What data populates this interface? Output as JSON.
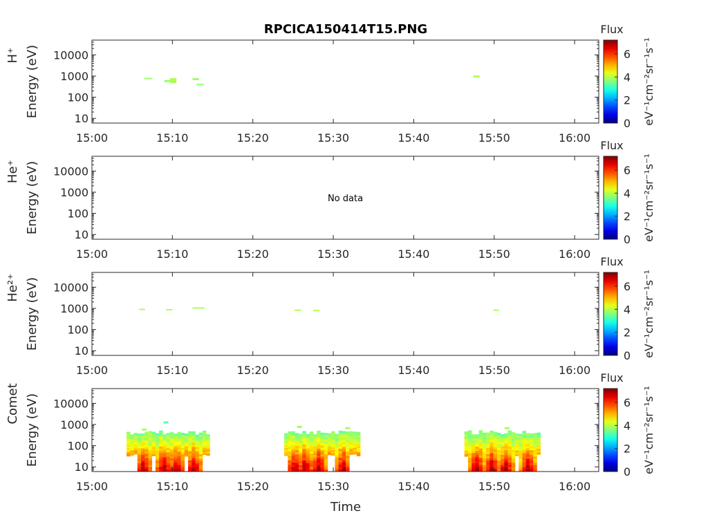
{
  "chart_data": {
    "type": "heatmap",
    "title": "RPCICA150414T15.PNG",
    "xlabel": "Time",
    "x_range": [
      "15:00",
      "16:03"
    ],
    "x_ticks": [
      "15:00",
      "15:10",
      "15:20",
      "15:30",
      "15:40",
      "15:50",
      "16:00"
    ],
    "y_scale": "log",
    "y_range_eV": [
      6,
      50000
    ],
    "y_ticks": [
      "10",
      "100",
      "1000",
      "10000"
    ],
    "colorbar": {
      "label_top": "Flux",
      "unit": "eV⁻¹cm⁻²sr⁻¹s⁻¹",
      "range": [
        0,
        7.2
      ],
      "ticks": [
        "0",
        "2",
        "4",
        "6"
      ],
      "colormap": "jet"
    },
    "panels": [
      {
        "species": "H⁺",
        "ylabel": "Energy (eV)",
        "message": "",
        "cells": [
          {
            "t0": 6.5,
            "t1": 7.5,
            "e0": 720,
            "e1": 820,
            "v": 3.8
          },
          {
            "t0": 9.0,
            "t1": 10.0,
            "e0": 520,
            "e1": 650,
            "v": 3.7
          },
          {
            "t0": 9.7,
            "t1": 10.5,
            "e0": 460,
            "e1": 800,
            "v": 3.9
          },
          {
            "t0": 12.5,
            "t1": 13.3,
            "e0": 640,
            "e1": 800,
            "v": 3.8
          },
          {
            "t0": 13.0,
            "t1": 13.9,
            "e0": 370,
            "e1": 430,
            "v": 3.7
          },
          {
            "t0": 47.4,
            "t1": 48.2,
            "e0": 850,
            "e1": 1060,
            "v": 3.9
          }
        ]
      },
      {
        "species": "He⁺",
        "ylabel": "Energy (eV)",
        "message": "No data",
        "cells": []
      },
      {
        "species": "He²⁺",
        "ylabel": "Energy (eV)",
        "message": "",
        "cells": [
          {
            "t0": 5.9,
            "t1": 6.6,
            "e0": 860,
            "e1": 960,
            "v": 3.9
          },
          {
            "t0": 9.2,
            "t1": 10.0,
            "e0": 820,
            "e1": 930,
            "v": 3.9
          },
          {
            "t0": 12.5,
            "t1": 14.0,
            "e0": 1020,
            "e1": 1120,
            "v": 3.9
          },
          {
            "t0": 25.2,
            "t1": 26.0,
            "e0": 770,
            "e1": 880,
            "v": 3.9
          },
          {
            "t0": 27.5,
            "t1": 28.3,
            "e0": 740,
            "e1": 850,
            "v": 3.9
          },
          {
            "t0": 49.9,
            "t1": 50.6,
            "e0": 800,
            "e1": 880,
            "v": 3.9
          }
        ]
      },
      {
        "species": "Comet",
        "ylabel": "Energy (eV)",
        "message": "",
        "bursts": [
          {
            "t0": 4.3,
            "t1": 14.3,
            "cores": [
              6.2,
              8.7,
              10.3,
              12.5
            ],
            "top": 420,
            "extras": [
              {
                "t": 9.2,
                "e": 1300,
                "v": 3.3
              },
              {
                "t": 6.5,
                "e": 600,
                "v": 3.9
              }
            ]
          },
          {
            "t0": 23.9,
            "t1": 33.1,
            "cores": [
              25.0,
              26.3,
              28.0,
              31.0
            ],
            "top": 430,
            "extras": [
              {
                "t": 25.8,
                "e": 800,
                "v": 3.8
              },
              {
                "t": 31.8,
                "e": 700,
                "v": 3.9
              }
            ]
          },
          {
            "t0": 46.3,
            "t1": 55.4,
            "cores": [
              47.6,
              49.5,
              51.2,
              54.0
            ],
            "top": 440,
            "extras": [
              {
                "t": 51.6,
                "e": 700,
                "v": 3.9
              }
            ]
          }
        ]
      }
    ]
  }
}
